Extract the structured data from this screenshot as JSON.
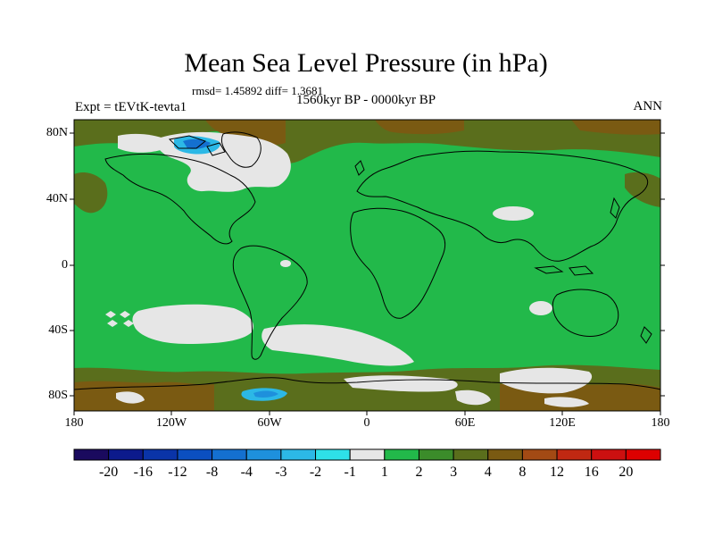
{
  "title": "Mean Sea Level Pressure (in hPa)",
  "stats_text": "rmsd= 1.45892  diff= 1.3681",
  "period": "1560kyr BP - 0000kyr BP",
  "experiment": "Expt = tEVtK-tevta1",
  "season": "ANN",
  "y_axis_labels": [
    "80N",
    "40N",
    "0",
    "40S",
    "80S"
  ],
  "x_axis_labels": [
    "180",
    "120W",
    "60W",
    "0",
    "60E",
    "120E",
    "180"
  ],
  "colorbar": {
    "labels": [
      "-20",
      "-16",
      "-12",
      "-8",
      "-4",
      "-3",
      "-2",
      "-1",
      "1",
      "2",
      "3",
      "4",
      "8",
      "12",
      "16",
      "20"
    ],
    "colors": [
      "#1a0a5e",
      "#0c1a8c",
      "#0a34a8",
      "#0b4fc0",
      "#1470d0",
      "#1e90dc",
      "#2cb8e6",
      "#2ee0e8",
      "#e6e6e6",
      "#22b94a",
      "#3b8c2a",
      "#5a6e1c",
      "#7a5a12",
      "#a34a14",
      "#c02812",
      "#cc1010",
      "#dd0000"
    ]
  },
  "colors": {
    "land_sea_base": "#22b94a",
    "near_zero": "#e6e6e6",
    "positive_3_4": "#5a6e1c",
    "positive_4_8": "#7a5a12",
    "negative": "#2cb8e6",
    "coastline": "#000000"
  }
}
